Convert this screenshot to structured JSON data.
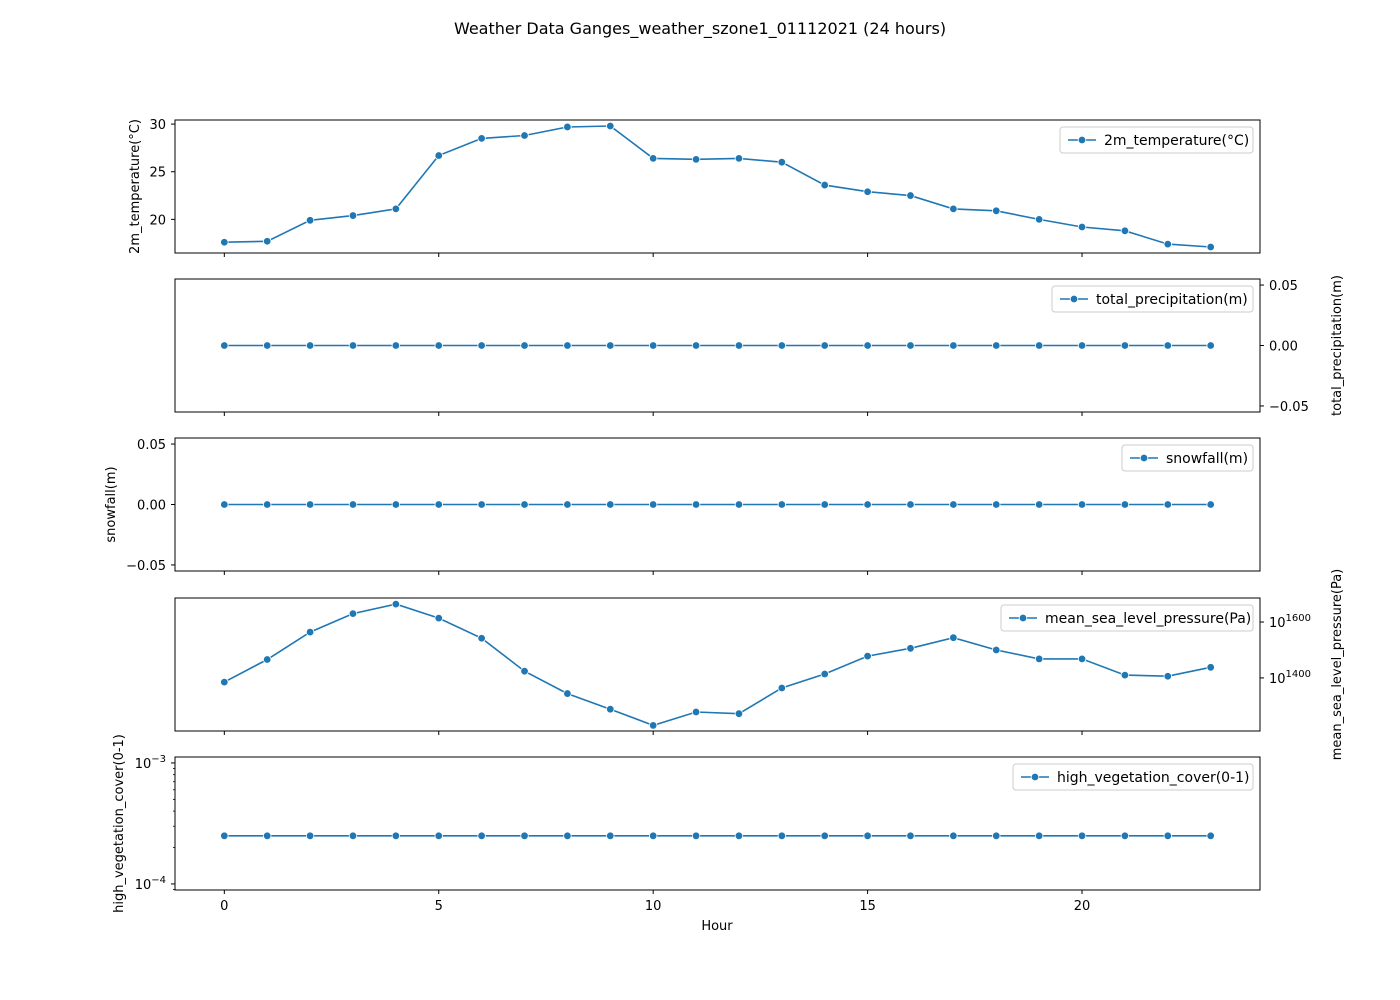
{
  "chart_data": {
    "type": "line",
    "title": "Weather Data Ganges_weather_szone1_01112021 (24 hours)",
    "xlabel": "Hour",
    "x": [
      0,
      1,
      2,
      3,
      4,
      5,
      6,
      7,
      8,
      9,
      10,
      11,
      12,
      13,
      14,
      15,
      16,
      17,
      18,
      19,
      20,
      21,
      22,
      23
    ],
    "xlim": [
      -1.15,
      24.15
    ],
    "x_ticks": [
      0,
      5,
      10,
      15,
      20
    ],
    "x_tick_labels": [
      "0",
      "5",
      "10",
      "15",
      "20"
    ],
    "line_color": "#1f77b4",
    "legend_location": "upper right",
    "grid": false,
    "panels": [
      {
        "type": "line",
        "series_name": "2m_temperature(°C)",
        "ylabel": "2m_temperature(°C)",
        "y_axis_side": "left",
        "y_scale": "linear",
        "ylim": [
          16.47,
          30.43
        ],
        "y_ticks": [
          20,
          25,
          30
        ],
        "y_tick_labels": [
          "20",
          "25",
          "30"
        ],
        "values": [
          17.6,
          17.7,
          19.9,
          20.4,
          21.1,
          26.7,
          28.5,
          28.8,
          29.7,
          29.8,
          26.4,
          26.3,
          26.4,
          26.0,
          23.6,
          22.9,
          22.5,
          21.1,
          20.9,
          20.0,
          19.2,
          18.8,
          17.4,
          17.1
        ]
      },
      {
        "type": "line",
        "series_name": "total_precipitation(m)",
        "ylabel": "total_precipitation(m)",
        "y_axis_side": "right",
        "y_scale": "linear",
        "ylim": [
          -0.055,
          0.055
        ],
        "y_ticks": [
          -0.05,
          0.0,
          0.05
        ],
        "y_tick_labels": [
          "−0.05",
          "0.00",
          "0.05"
        ],
        "values": [
          0,
          0,
          0,
          0,
          0,
          0,
          0,
          0,
          0,
          0,
          0,
          0,
          0,
          0,
          0,
          0,
          0,
          0,
          0,
          0,
          0,
          0,
          0,
          0
        ]
      },
      {
        "type": "line",
        "series_name": "snowfall(m)",
        "ylabel": "snowfall(m)",
        "y_axis_side": "left",
        "y_scale": "linear",
        "ylim": [
          -0.055,
          0.055
        ],
        "y_ticks": [
          -0.05,
          0.0,
          0.05
        ],
        "y_tick_labels": [
          "−0.05",
          "0.00",
          "0.05"
        ],
        "values": [
          0,
          0,
          0,
          0,
          0,
          0,
          0,
          0,
          0,
          0,
          0,
          0,
          0,
          0,
          0,
          0,
          0,
          0,
          0,
          0,
          0,
          0,
          0,
          0
        ]
      },
      {
        "type": "line",
        "series_name": "mean_sea_level_pressure(Pa)",
        "ylabel": "mean_sea_level_pressure(Pa)",
        "y_axis_side": "right",
        "y_scale": "linear",
        "ylim": [
          101210,
          101686
        ],
        "y_ticks": [
          101400,
          101600
        ],
        "y_tick_labels": [
          "101400",
          "101600"
        ],
        "values": [
          101385,
          101466,
          101564,
          101630,
          101664,
          101614,
          101542,
          101424,
          101344,
          101288,
          101230,
          101278,
          101272,
          101364,
          101414,
          101478,
          101506,
          101544,
          101500,
          101468,
          101468,
          101410,
          101406,
          101438
        ]
      },
      {
        "type": "line",
        "series_name": "high_vegetation_cover(0-1)",
        "ylabel": "high_vegetation_cover(0-1)",
        "y_axis_side": "left",
        "y_scale": "log",
        "ylim": [
          8.91e-05,
          0.00112
        ],
        "y_ticks": [
          0.0001,
          0.001
        ],
        "y_tick_labels": [
          "10−4",
          "10−3"
        ],
        "values": [
          0.00025,
          0.00025,
          0.00025,
          0.00025,
          0.00025,
          0.00025,
          0.00025,
          0.00025,
          0.00025,
          0.00025,
          0.00025,
          0.00025,
          0.00025,
          0.00025,
          0.00025,
          0.00025,
          0.00025,
          0.00025,
          0.00025,
          0.00025,
          0.00025,
          0.00025,
          0.00025,
          0.00025
        ]
      }
    ]
  }
}
